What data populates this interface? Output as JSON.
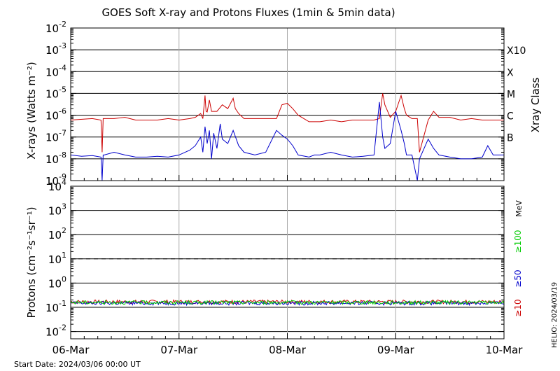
{
  "chart_data": [
    {
      "type": "line",
      "title": "GOES Soft X-ray and Protons Fluxes   (1min & 5min data)",
      "ylabel": "X-rays (Watts m⁻²)",
      "y_scale": "log",
      "ylim": [
        1e-09,
        0.01
      ],
      "y_ticks": [
        {
          "mant": "10",
          "exp": "-9"
        },
        {
          "mant": "10",
          "exp": "-8"
        },
        {
          "mant": "10",
          "exp": "-7"
        },
        {
          "mant": "10",
          "exp": "-6"
        },
        {
          "mant": "10",
          "exp": "-5"
        },
        {
          "mant": "10",
          "exp": "-4"
        },
        {
          "mant": "10",
          "exp": "-3"
        },
        {
          "mant": "10",
          "exp": "-2"
        }
      ],
      "y_tick_values": [
        -9,
        -8,
        -7,
        -6,
        -5,
        -4,
        -3,
        -2
      ],
      "right_axis_label": "Xray Class",
      "class_labels": [
        {
          "label": "B",
          "value": 1e-07
        },
        {
          "label": "C",
          "value": 1e-06
        },
        {
          "label": "M",
          "value": 1e-05
        },
        {
          "label": "X",
          "value": 0.0001
        },
        {
          "label": "X10",
          "value": 0.001
        }
      ],
      "x_unit": "days since 06-Mar 00:00 UT",
      "series": [
        {
          "color": "#cc0000",
          "x": [
            0,
            0.2,
            0.28,
            0.29,
            0.3,
            0.31,
            0.4,
            0.5,
            0.6,
            0.7,
            0.8,
            0.9,
            1.0,
            1.1,
            1.15,
            1.2,
            1.22,
            1.24,
            1.25,
            1.26,
            1.28,
            1.3,
            1.35,
            1.4,
            1.45,
            1.5,
            1.52,
            1.55,
            1.6,
            1.7,
            1.8,
            1.9,
            1.95,
            2.0,
            2.05,
            2.1,
            2.2,
            2.25,
            2.3,
            2.4,
            2.5,
            2.6,
            2.7,
            2.8,
            2.85,
            2.88,
            2.9,
            2.95,
            3.0,
            3.05,
            3.08,
            3.1,
            3.15,
            3.2,
            3.22,
            3.3,
            3.35,
            3.4,
            3.5,
            3.6,
            3.7,
            3.8,
            3.9,
            4.0
          ],
          "y": [
            6e-07,
            7e-07,
            6e-07,
            2e-08,
            7e-07,
            7e-07,
            7e-07,
            8e-07,
            6e-07,
            6e-07,
            6e-07,
            7e-07,
            6e-07,
            7e-07,
            8e-07,
            1.2e-06,
            7e-07,
            8e-06,
            1.5e-06,
            1.4e-06,
            5e-06,
            1.5e-06,
            1.5e-06,
            3e-06,
            2e-06,
            6e-06,
            2e-06,
            1.2e-06,
            7e-07,
            7e-07,
            7e-07,
            7e-07,
            3e-06,
            3.5e-06,
            2e-06,
            1e-06,
            5e-07,
            5e-07,
            5e-07,
            6e-07,
            5e-07,
            6e-07,
            6e-07,
            6e-07,
            7e-07,
            1e-05,
            3e-06,
            8e-07,
            1.5e-06,
            8e-06,
            2e-06,
            1e-06,
            7e-07,
            7e-07,
            2e-08,
            6e-07,
            1.5e-06,
            8e-07,
            8e-07,
            6e-07,
            7e-07,
            6e-07,
            6e-07,
            6e-07
          ]
        },
        {
          "color": "#0000cc",
          "x": [
            0,
            0.1,
            0.2,
            0.28,
            0.29,
            0.3,
            0.31,
            0.4,
            0.5,
            0.6,
            0.7,
            0.8,
            0.9,
            1.0,
            1.1,
            1.15,
            1.2,
            1.22,
            1.24,
            1.26,
            1.28,
            1.3,
            1.32,
            1.35,
            1.38,
            1.4,
            1.45,
            1.5,
            1.55,
            1.6,
            1.7,
            1.8,
            1.9,
            1.95,
            2.0,
            2.05,
            2.1,
            2.2,
            2.25,
            2.3,
            2.4,
            2.5,
            2.6,
            2.7,
            2.8,
            2.85,
            2.88,
            2.9,
            2.95,
            3.0,
            3.05,
            3.08,
            3.1,
            3.15,
            3.2,
            3.22,
            3.3,
            3.35,
            3.4,
            3.5,
            3.6,
            3.7,
            3.8,
            3.85,
            3.9,
            4.0
          ],
          "y": [
            1.5e-08,
            1.3e-08,
            1.4e-08,
            1.2e-08,
            1e-09,
            1.5e-08,
            1.5e-08,
            2e-08,
            1.5e-08,
            1.2e-08,
            1.2e-08,
            1.3e-08,
            1.2e-08,
            1.5e-08,
            2.5e-08,
            4e-08,
            1e-07,
            2e-08,
            3e-07,
            5e-08,
            2e-07,
            1e-08,
            1.5e-07,
            3e-08,
            4e-07,
            8e-08,
            5e-08,
            2e-07,
            4e-08,
            2e-08,
            1.5e-08,
            2e-08,
            2e-07,
            1.2e-07,
            8e-08,
            4e-08,
            1.5e-08,
            1.2e-08,
            1.5e-08,
            1.5e-08,
            2e-08,
            1.5e-08,
            1.2e-08,
            1.3e-08,
            1.5e-08,
            4e-06,
            1e-07,
            3e-08,
            5e-08,
            1.5e-06,
            2e-07,
            5e-08,
            1.5e-08,
            1.5e-08,
            1e-09,
            1e-08,
            8e-08,
            3e-08,
            1.5e-08,
            1.2e-08,
            1e-08,
            1e-08,
            1.2e-08,
            4e-08,
            1.5e-08,
            1.5e-08
          ]
        }
      ]
    },
    {
      "type": "line",
      "ylabel": "Protons (cm⁻²s⁻¹sr⁻¹)",
      "y_scale": "log",
      "ylim": [
        0.005,
        10000
      ],
      "y_ticks": [
        {
          "mant": "10",
          "exp": "-2"
        },
        {
          "mant": "10",
          "exp": "-1"
        },
        {
          "mant": "10",
          "exp": "0"
        },
        {
          "mant": "10",
          "exp": "1"
        },
        {
          "mant": "10",
          "exp": "2"
        },
        {
          "mant": "10",
          "exp": "3"
        },
        {
          "mant": "10",
          "exp": "4"
        }
      ],
      "y_tick_values": [
        -2,
        -1,
        0,
        1,
        2,
        3,
        4
      ],
      "dashed_threshold": 10,
      "unit_label": "MeV",
      "energy_labels": [
        {
          "label": "≥10",
          "color": "#cc0000"
        },
        {
          "label": "≥50",
          "color": "#0000cc"
        },
        {
          "label": "≥100",
          "color": "#00cc00"
        }
      ],
      "series": [
        {
          "color": "#cc0000",
          "baseline": 0.17
        },
        {
          "color": "#0000cc",
          "baseline": 0.15
        },
        {
          "color": "#00cc00",
          "baseline": 0.16
        }
      ],
      "x_range": [
        0,
        4
      ],
      "x_tick_labels": [
        "06-Mar",
        "07-Mar",
        "08-Mar",
        "09-Mar",
        "10-Mar"
      ],
      "x_tick_values": [
        0,
        1,
        2,
        3,
        4
      ]
    }
  ],
  "footer": {
    "start_date": "Start Date: 2024/03/06 00:00 UT",
    "side_stamp": "HELIO: 2024/03/19"
  }
}
